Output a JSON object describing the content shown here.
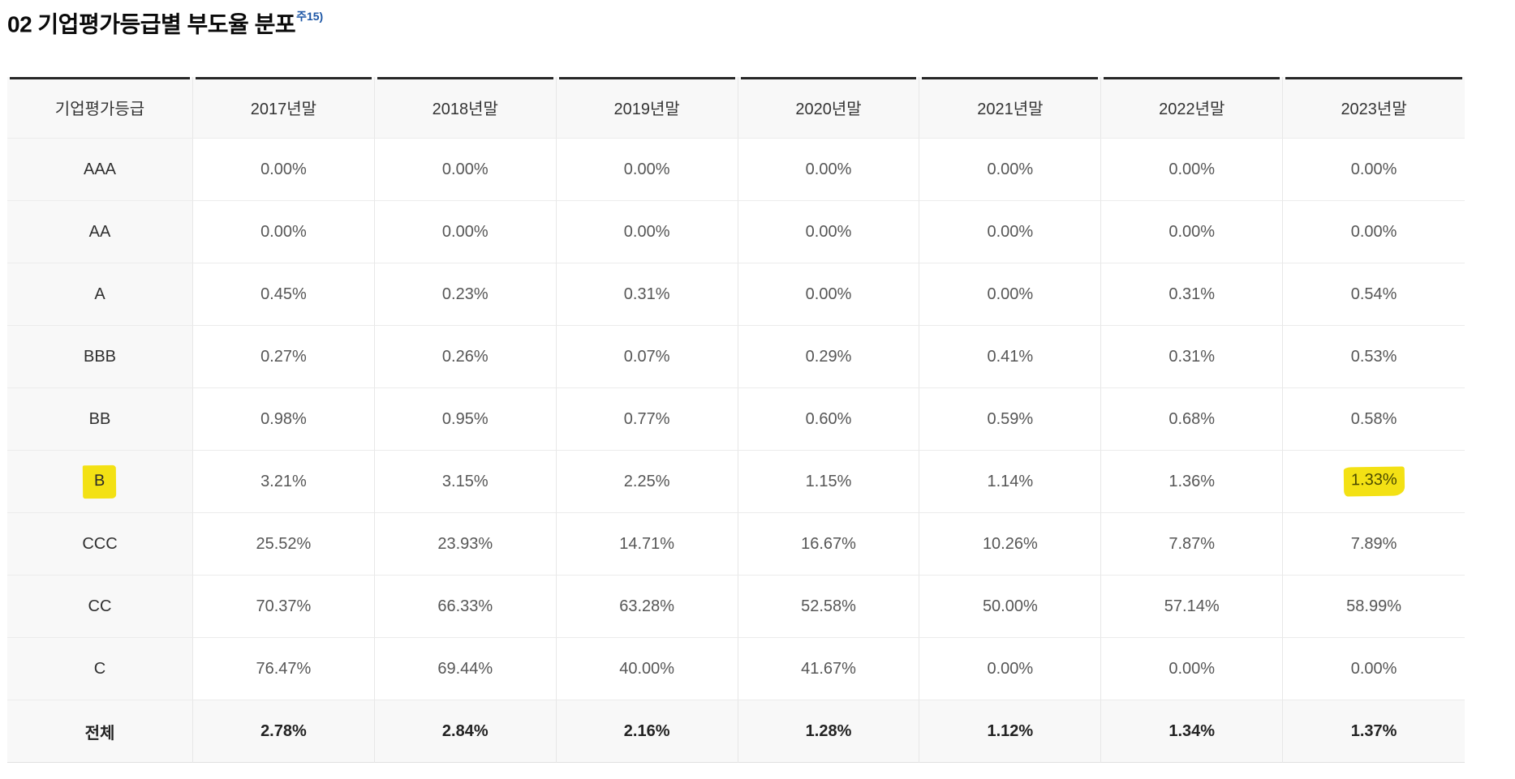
{
  "title": {
    "text": "02 기업평가등급별 부도율 분포",
    "note_ref": "주15)"
  },
  "colors": {
    "highlight_yellow": "#f3e114",
    "note_blue": "#1b55a5"
  },
  "table": {
    "grade_column_header": "기업평가등급",
    "year_headers": [
      "2017년말",
      "2018년말",
      "2019년말",
      "2020년말",
      "2021년말",
      "2022년말",
      "2023년말"
    ],
    "rows": [
      {
        "grade": "AAA",
        "values": [
          "0.00%",
          "0.00%",
          "0.00%",
          "0.00%",
          "0.00%",
          "0.00%",
          "0.00%"
        ],
        "highlight_grade": false,
        "highlight_value_cols": [],
        "is_total": false
      },
      {
        "grade": "AA",
        "values": [
          "0.00%",
          "0.00%",
          "0.00%",
          "0.00%",
          "0.00%",
          "0.00%",
          "0.00%"
        ],
        "highlight_grade": false,
        "highlight_value_cols": [],
        "is_total": false
      },
      {
        "grade": "A",
        "values": [
          "0.45%",
          "0.23%",
          "0.31%",
          "0.00%",
          "0.00%",
          "0.31%",
          "0.54%"
        ],
        "highlight_grade": false,
        "highlight_value_cols": [],
        "is_total": false
      },
      {
        "grade": "BBB",
        "values": [
          "0.27%",
          "0.26%",
          "0.07%",
          "0.29%",
          "0.41%",
          "0.31%",
          "0.53%"
        ],
        "highlight_grade": false,
        "highlight_value_cols": [],
        "is_total": false
      },
      {
        "grade": "BB",
        "values": [
          "0.98%",
          "0.95%",
          "0.77%",
          "0.60%",
          "0.59%",
          "0.68%",
          "0.58%"
        ],
        "highlight_grade": false,
        "highlight_value_cols": [],
        "is_total": false
      },
      {
        "grade": "B",
        "values": [
          "3.21%",
          "3.15%",
          "2.25%",
          "1.15%",
          "1.14%",
          "1.36%",
          "1.33%"
        ],
        "highlight_grade": true,
        "highlight_value_cols": [
          6
        ],
        "is_total": false
      },
      {
        "grade": "CCC",
        "values": [
          "25.52%",
          "23.93%",
          "14.71%",
          "16.67%",
          "10.26%",
          "7.87%",
          "7.89%"
        ],
        "highlight_grade": false,
        "highlight_value_cols": [],
        "is_total": false
      },
      {
        "grade": "CC",
        "values": [
          "70.37%",
          "66.33%",
          "63.28%",
          "52.58%",
          "50.00%",
          "57.14%",
          "58.99%"
        ],
        "highlight_grade": false,
        "highlight_value_cols": [],
        "is_total": false
      },
      {
        "grade": "C",
        "values": [
          "76.47%",
          "69.44%",
          "40.00%",
          "41.67%",
          "0.00%",
          "0.00%",
          "0.00%"
        ],
        "highlight_grade": false,
        "highlight_value_cols": [],
        "is_total": false
      },
      {
        "grade": "전체",
        "values": [
          "2.78%",
          "2.84%",
          "2.16%",
          "1.28%",
          "1.12%",
          "1.34%",
          "1.37%"
        ],
        "highlight_grade": false,
        "highlight_value_cols": [],
        "is_total": true
      }
    ]
  }
}
